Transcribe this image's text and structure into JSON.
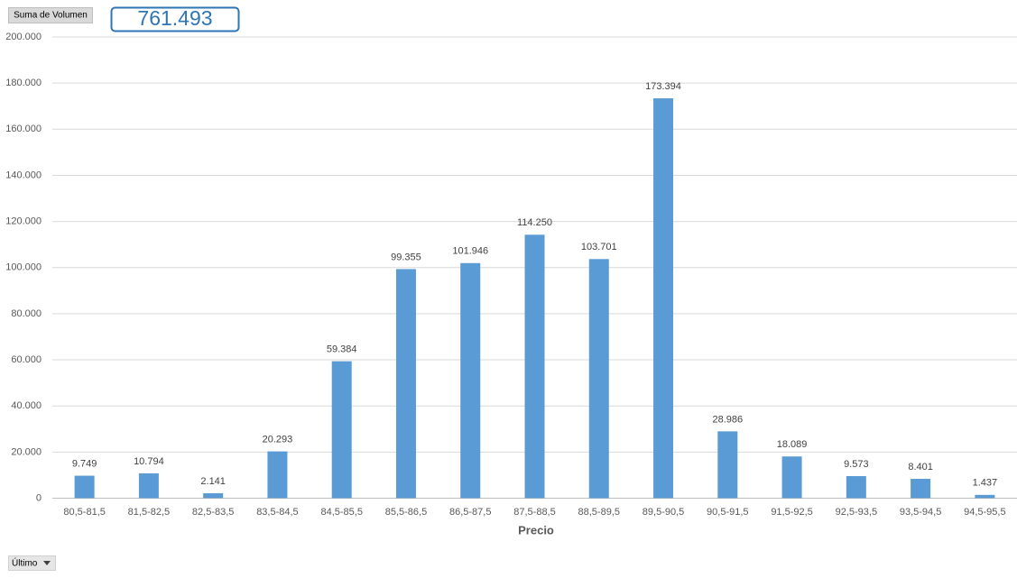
{
  "chart_data": {
    "type": "bar",
    "field_button": "Suma de Volumen",
    "total": "761.493",
    "filter_button": "Último",
    "x_label": "Precio",
    "categories": [
      "80,5-81,5",
      "81,5-82,5",
      "82,5-83,5",
      "83,5-84,5",
      "84,5-85,5",
      "85,5-86,5",
      "86,5-87,5",
      "87,5-88,5",
      "88,5-89,5",
      "89,5-90,5",
      "90,5-91,5",
      "91,5-92,5",
      "92,5-93,5",
      "93,5-94,5",
      "94,5-95,5"
    ],
    "values": [
      9749,
      10794,
      2141,
      20293,
      59384,
      99355,
      101946,
      114250,
      103701,
      173394,
      28986,
      18089,
      9573,
      8401,
      1437
    ],
    "value_labels": [
      "9.749",
      "10.794",
      "2.141",
      "20.293",
      "59.384",
      "99.355",
      "101.946",
      "114.250",
      "103.701",
      "173.394",
      "28.986",
      "18.089",
      "9.573",
      "8.401",
      "1.437"
    ],
    "color": "#5b9bd5",
    "ylim": [
      0,
      200000
    ],
    "yticks": [
      0,
      {
        "value": 20000,
        "label": "20.000"
      },
      {
        "value": 40000,
        "label": "40.000"
      },
      {
        "value": 60000,
        "label": "60.000"
      },
      {
        "value": 80000,
        "label": "80.000"
      },
      {
        "value": 100000,
        "label": "100.000"
      },
      {
        "value": 120000,
        "label": "120.000"
      },
      {
        "value": 140000,
        "label": "140.000"
      },
      {
        "value": 160000,
        "label": "160.000"
      },
      {
        "value": 180000,
        "label": "180.000"
      },
      {
        "value": 200000,
        "label": "200.000"
      }
    ],
    "grid": true
  }
}
